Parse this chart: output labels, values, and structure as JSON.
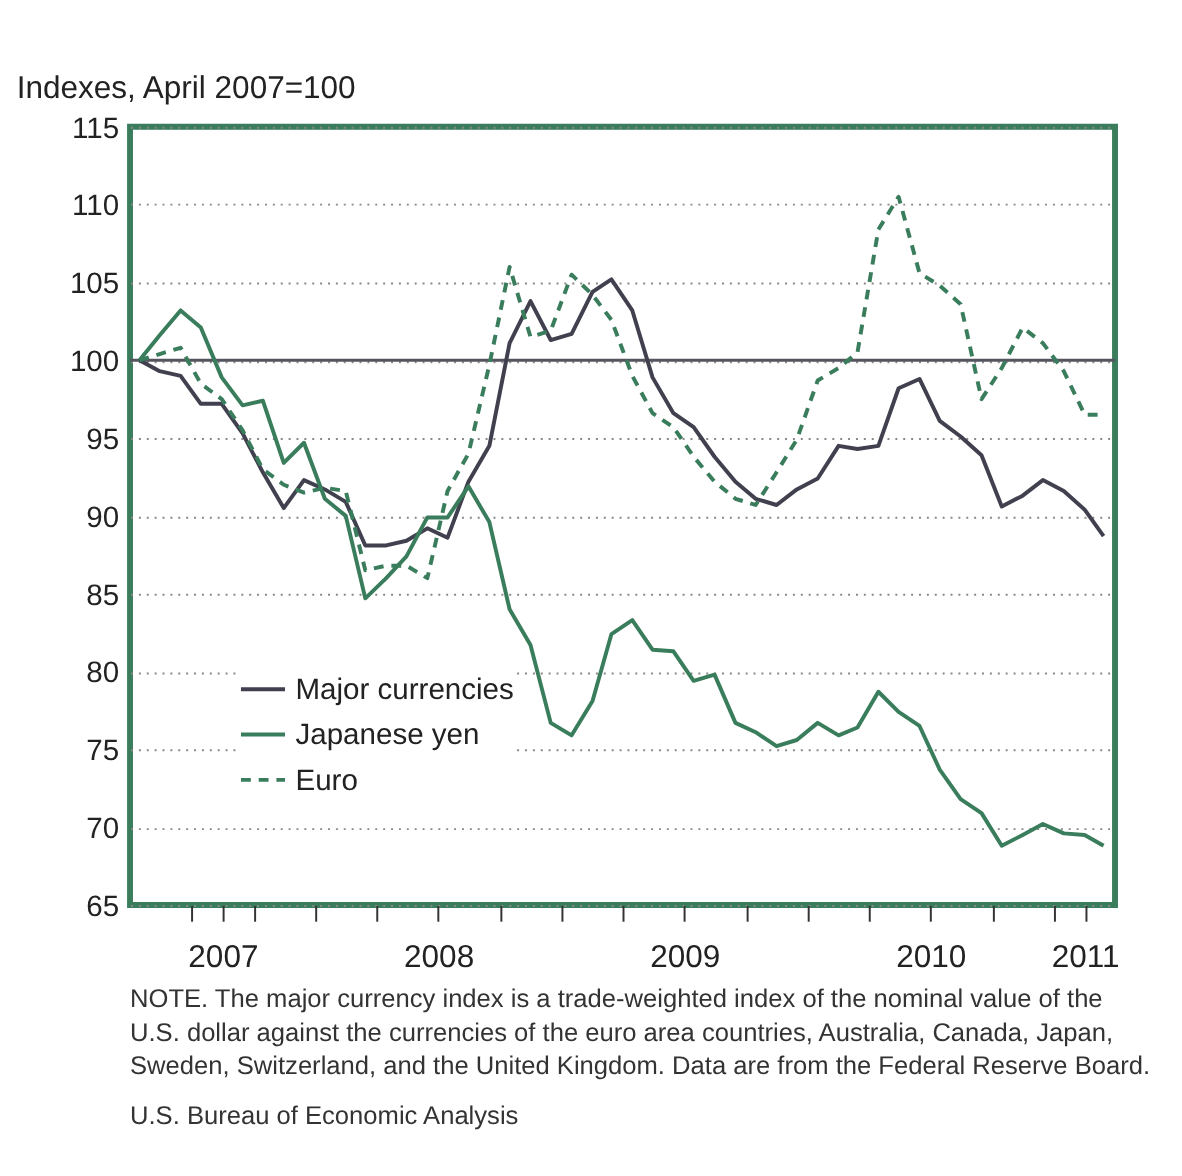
{
  "chart_data": {
    "type": "line",
    "ylabel": "Indexes, April 2007=100",
    "x": [
      "2007-04-15",
      "2007-05-15",
      "2007-06-15",
      "2007-07-15",
      "2007-08-15",
      "2007-09-15",
      "2007-10-15",
      "2007-11-15",
      "2007-12-15",
      "2008-01-15",
      "2008-02-15",
      "2008-03-15",
      "2008-04-15",
      "2008-05-15",
      "2008-06-15",
      "2008-07-15",
      "2008-08-15",
      "2008-09-15",
      "2008-10-15",
      "2008-11-15",
      "2008-12-15",
      "2009-01-15",
      "2009-02-15",
      "2009-03-15",
      "2009-04-15",
      "2009-05-15",
      "2009-06-15",
      "2009-07-15",
      "2009-08-15",
      "2009-09-15",
      "2009-10-15",
      "2009-11-15",
      "2009-12-15",
      "2010-01-15",
      "2010-02-15",
      "2010-03-15",
      "2010-04-15",
      "2010-05-15",
      "2010-06-15",
      "2010-07-15",
      "2010-08-15",
      "2010-09-15",
      "2010-10-15",
      "2010-11-15",
      "2010-12-15",
      "2011-01-15",
      "2011-02-15",
      "2011-03-15"
    ],
    "series": [
      {
        "name": "Major currencies",
        "color": "#40404f",
        "line_style": "solid",
        "values": [
          100,
          99.3,
          99,
          97.2,
          97.2,
          95.3,
          92.8,
          90.5,
          92.3,
          91.7,
          90.9,
          88.1,
          88.1,
          88.4,
          89.2,
          88.6,
          92.2,
          94.5,
          101.1,
          103.8,
          101.3,
          101.7,
          104.4,
          105.2,
          103.2,
          98.9,
          96.6,
          95.7,
          93.8,
          92.2,
          91.1,
          90.7,
          91.7,
          92.4,
          94.5,
          94.3,
          94.5,
          98.2,
          98.8,
          96.1,
          95.1,
          93.9,
          90.6,
          91.3,
          92.3,
          91.6,
          90.4,
          88.7
        ]
      },
      {
        "name": "Japanese yen",
        "color": "#3a7d5c",
        "line_style": "solid",
        "values": [
          100,
          101.6,
          103.2,
          102.1,
          98.9,
          97.1,
          97.4,
          93.4,
          94.7,
          91.1,
          90,
          84.7,
          86,
          87.4,
          89.9,
          89.9,
          91.9,
          89.6,
          84,
          81.7,
          76.7,
          75.9,
          78.1,
          82.4,
          83.3,
          81.4,
          81.3,
          79.4,
          79.8,
          76.7,
          76.1,
          75.2,
          75.6,
          76.7,
          75.9,
          76.4,
          78.7,
          77.4,
          76.5,
          73.7,
          71.8,
          70.9,
          68.8,
          69.5,
          70.2,
          69.6,
          69.5,
          68.8
        ]
      },
      {
        "name": "Euro",
        "color": "#3a7d5c",
        "line_style": "dashed",
        "values": [
          100,
          100.4,
          100.8,
          98.5,
          97.5,
          95.5,
          93,
          92,
          91.5,
          91.8,
          91.6,
          86.5,
          86.8,
          86.8,
          86,
          91.6,
          94,
          99.7,
          106,
          101.5,
          101.9,
          105.5,
          104.2,
          102.6,
          99,
          96.6,
          95.7,
          93.8,
          92.2,
          91.1,
          90.7,
          92.8,
          94.9,
          98.7,
          99.5,
          100.5,
          108.4,
          110.5,
          105.6,
          104.8,
          103.6,
          97.5,
          99.5,
          102.1,
          101.1,
          99.3,
          96.5,
          96.5
        ]
      }
    ],
    "xlim": [
      "2007-04-01",
      "2011-04-01"
    ],
    "xticks": [
      {
        "value": "2007-07-01",
        "label": null
      },
      {
        "value": "2007-08-16",
        "label": "2007"
      },
      {
        "value": "2007-10-01",
        "label": null
      },
      {
        "value": "2008-01-01",
        "label": null
      },
      {
        "value": "2008-04-01",
        "label": null
      },
      {
        "value": "2008-07-01",
        "label": "2008"
      },
      {
        "value": "2008-10-01",
        "label": null
      },
      {
        "value": "2009-01-01",
        "label": null
      },
      {
        "value": "2009-04-01",
        "label": null
      },
      {
        "value": "2009-07-01",
        "label": "2009"
      },
      {
        "value": "2009-10-01",
        "label": null
      },
      {
        "value": "2010-01-01",
        "label": null
      },
      {
        "value": "2010-04-01",
        "label": null
      },
      {
        "value": "2010-07-01",
        "label": "2010"
      },
      {
        "value": "2010-10-01",
        "label": null
      },
      {
        "value": "2011-01-01",
        "label": null
      },
      {
        "value": "2011-02-15",
        "label": "2011"
      }
    ],
    "ylim": [
      65,
      115
    ],
    "yticks": [
      65,
      70,
      75,
      80,
      85,
      90,
      95,
      100,
      105,
      110,
      115
    ],
    "grid": "y",
    "ref_lines": [
      {
        "axis": "y",
        "value": 100,
        "label": null,
        "color": "#55555f"
      }
    ],
    "legend": "bottom left",
    "annotations": [
      "NOTE. The major currency index is a trade-weighted index of the nominal value of the U.S. dollar against the currencies of the euro area countries, Australia, Canada, Japan, Sweden, Switzerland, and the United Kingdom. Data are from the Federal Reserve Board.",
      "U.S. Bureau of Economic Analysis"
    ]
  }
}
